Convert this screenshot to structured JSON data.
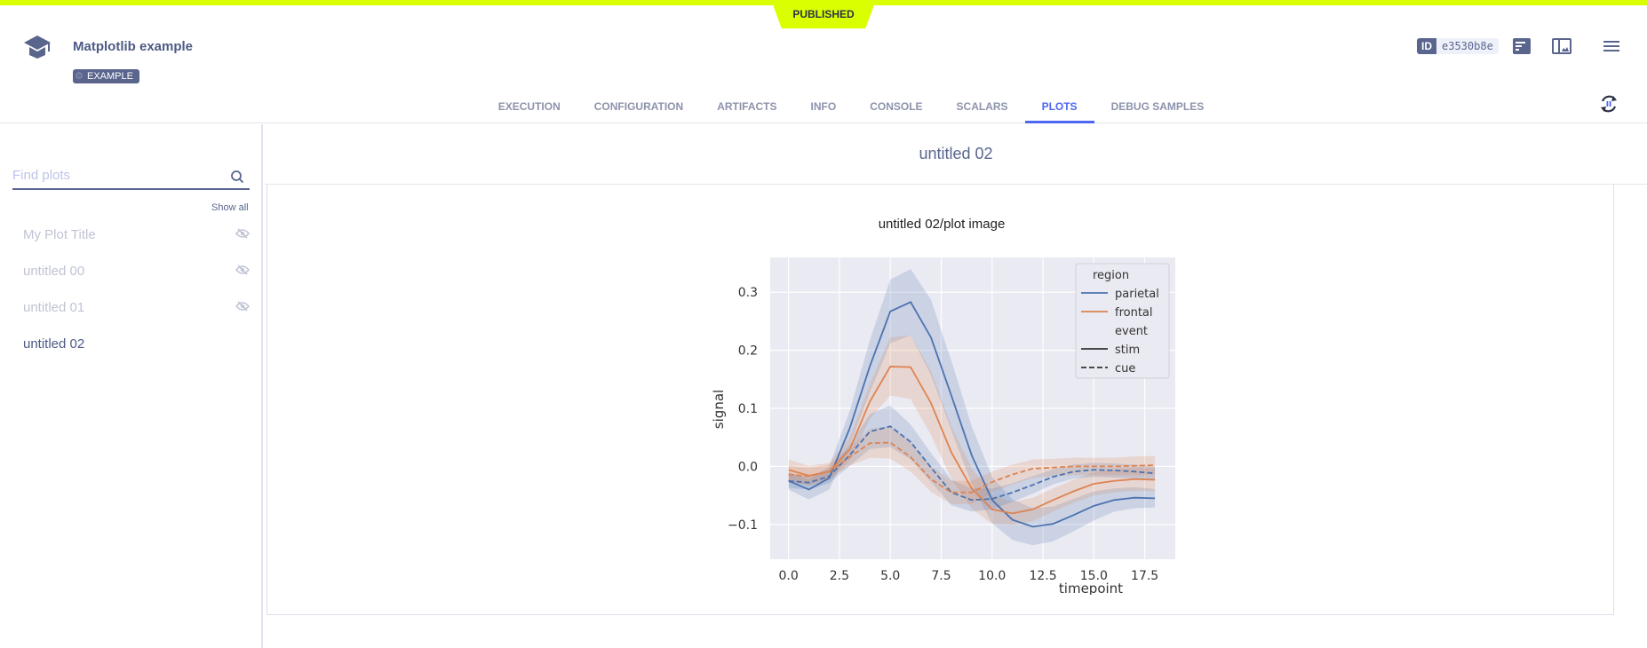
{
  "status_banner": "PUBLISHED",
  "header": {
    "title": "Matplotlib example",
    "tag": "EXAMPLE",
    "id_label": "ID",
    "id_value": "e3530b8e"
  },
  "tabs": [
    {
      "label": "EXECUTION"
    },
    {
      "label": "CONFIGURATION"
    },
    {
      "label": "ARTIFACTS"
    },
    {
      "label": "INFO"
    },
    {
      "label": "CONSOLE"
    },
    {
      "label": "SCALARS"
    },
    {
      "label": "PLOTS",
      "active": true
    },
    {
      "label": "DEBUG SAMPLES"
    }
  ],
  "sidebar": {
    "search_placeholder": "Find plots",
    "search_value": "",
    "show_all": "Show all",
    "items": [
      {
        "label": "My Plot Title",
        "hidden": true
      },
      {
        "label": "untitled 00",
        "hidden": true
      },
      {
        "label": "untitled 01",
        "hidden": true
      },
      {
        "label": "untitled 02",
        "hidden": false
      }
    ]
  },
  "main": {
    "title": "untitled 02",
    "plot_title": "untitled 02/plot image"
  },
  "colors": {
    "accent": "#4d66f0",
    "banner": "#d9ff00",
    "parietal": "#4c72b0",
    "frontal": "#dd8452",
    "axes_bg": "#eaeaf2"
  },
  "chart_data": {
    "type": "line",
    "xlabel": "timepoint",
    "ylabel": "signal",
    "xlim": [
      -0.9,
      19.0
    ],
    "ylim": [
      -0.16,
      0.36
    ],
    "xticks": [
      "0.0",
      "2.5",
      "5.0",
      "7.5",
      "10.0",
      "12.5",
      "15.0",
      "17.5"
    ],
    "yticks": [
      "−0.1",
      "0.0",
      "0.1",
      "0.2",
      "0.3"
    ],
    "grid": true,
    "legend_position": "top-right",
    "legend": {
      "hue_title": "region",
      "style_title": "event",
      "hue": [
        "parietal",
        "frontal"
      ],
      "style": [
        "stim",
        "cue"
      ]
    },
    "x": [
      0,
      1,
      2,
      3,
      4,
      5,
      6,
      7,
      8,
      9,
      10,
      11,
      12,
      13,
      14,
      15,
      16,
      17,
      18
    ],
    "series": [
      {
        "name": "parietal",
        "event": "stim",
        "values": [
          -0.025,
          -0.04,
          -0.02,
          0.065,
          0.173,
          0.267,
          0.283,
          0.222,
          0.122,
          0.019,
          -0.058,
          -0.092,
          -0.104,
          -0.099,
          -0.084,
          -0.068,
          -0.058,
          -0.054,
          -0.055
        ],
        "ci": [
          0.015,
          0.017,
          0.02,
          0.03,
          0.045,
          0.055,
          0.057,
          0.065,
          0.06,
          0.05,
          0.04,
          0.035,
          0.032,
          0.03,
          0.028,
          0.025,
          0.02,
          0.018,
          0.016
        ]
      },
      {
        "name": "frontal",
        "event": "stim",
        "values": [
          -0.006,
          -0.016,
          -0.009,
          0.029,
          0.112,
          0.172,
          0.171,
          0.109,
          0.024,
          -0.038,
          -0.074,
          -0.081,
          -0.074,
          -0.058,
          -0.043,
          -0.03,
          -0.025,
          -0.022,
          -0.023
        ],
        "ci": [
          0.018,
          0.017,
          0.015,
          0.02,
          0.03,
          0.05,
          0.055,
          0.055,
          0.045,
          0.035,
          0.025,
          0.02,
          0.02,
          0.02,
          0.02,
          0.02,
          0.02,
          0.02,
          0.02
        ]
      },
      {
        "name": "parietal",
        "event": "cue",
        "values": [
          -0.025,
          -0.028,
          -0.017,
          0.019,
          0.06,
          0.069,
          0.042,
          -0.002,
          -0.045,
          -0.058,
          -0.056,
          -0.045,
          -0.032,
          -0.018,
          -0.009,
          -0.006,
          -0.007,
          -0.009,
          -0.012
        ],
        "ci": [
          0.012,
          0.012,
          0.012,
          0.018,
          0.03,
          0.036,
          0.03,
          0.025,
          0.022,
          0.02,
          0.018,
          0.016,
          0.015,
          0.013,
          0.012,
          0.012,
          0.012,
          0.012,
          0.012
        ]
      },
      {
        "name": "frontal",
        "event": "cue",
        "values": [
          -0.014,
          -0.017,
          -0.009,
          0.016,
          0.04,
          0.041,
          0.016,
          -0.022,
          -0.045,
          -0.045,
          -0.027,
          -0.014,
          -0.004,
          -0.002,
          0.0,
          0.0,
          0.0,
          0.001,
          0.002
        ],
        "ci": [
          0.015,
          0.014,
          0.012,
          0.015,
          0.025,
          0.028,
          0.025,
          0.022,
          0.02,
          0.02,
          0.018,
          0.017,
          0.016,
          0.015,
          0.015,
          0.015,
          0.015,
          0.016,
          0.016
        ]
      }
    ]
  }
}
